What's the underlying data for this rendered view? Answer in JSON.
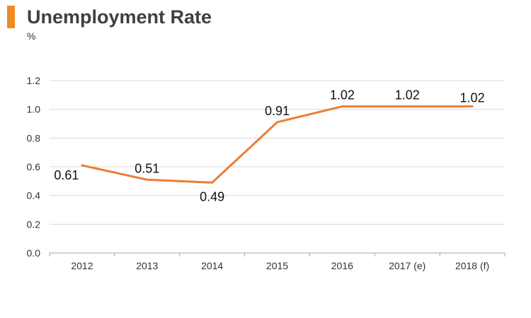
{
  "header": {
    "title": "Unemployment Rate",
    "unit": "%",
    "accent_color": "#f08a24"
  },
  "chart_data": {
    "type": "line",
    "title": "Unemployment Rate",
    "ylabel": "%",
    "xlabel": "",
    "categories": [
      "2012",
      "2013",
      "2014",
      "2015",
      "2016",
      "2017 (e)",
      "2018 (f)"
    ],
    "series": [
      {
        "values": [
          0.61,
          0.51,
          0.49,
          0.91,
          1.02,
          1.02,
          1.02
        ],
        "data_labels": [
          "0.61",
          "0.51",
          "0.49",
          "0.91",
          "1.02",
          "1.02",
          "1.02"
        ],
        "color": "#ed7d31"
      }
    ],
    "ylim": [
      0,
      1.2
    ],
    "yticks": [
      "0.0",
      "0.2",
      "0.4",
      "0.6",
      "0.8",
      "1.0",
      "1.2"
    ],
    "grid": true,
    "grid_color": "#d9d9d9",
    "legend": "none"
  }
}
